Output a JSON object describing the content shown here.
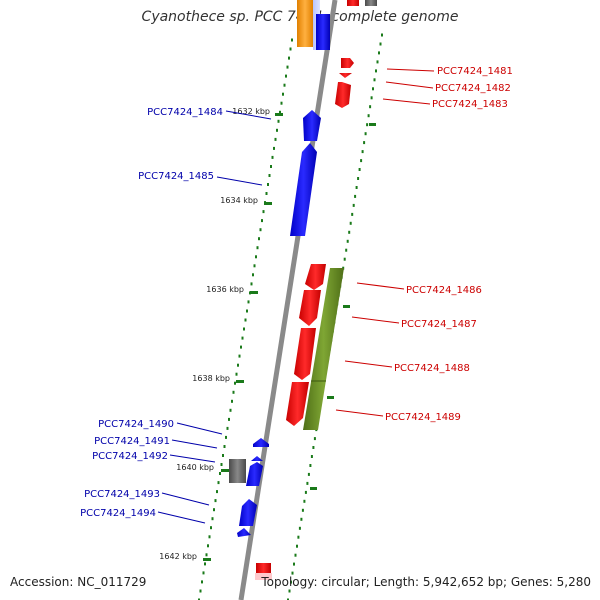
{
  "title": "Cyanothece sp. PCC 7424, complete genome",
  "footer": {
    "accession": "Accession: NC_011729",
    "summary": "Topology: circular; Length: 5,942,652 bp; Genes: 5,280"
  },
  "colors": {
    "backbone": "#8a8a8a",
    "minus_strand_gene": "#0000ee",
    "plus_strand_gene": "#ee0000",
    "orange_gene": "#f39a1c",
    "green_feature": "#6b8f26",
    "gray_feature": "#666666",
    "tick_mark": "#1a7a1a",
    "left_label": "#0000aa",
    "right_label": "#cc0000"
  },
  "kbp_labels": [
    "1632 kbp",
    "1634 kbp",
    "1636 kbp",
    "1638 kbp",
    "1640 kbp",
    "1642 kbp"
  ],
  "left_genes": [
    "PCC7424_1484",
    "PCC7424_1485",
    "PCC7424_1490",
    "PCC7424_1491",
    "PCC7424_1492",
    "PCC7424_1493",
    "PCC7424_1494"
  ],
  "right_genes": [
    "PCC7424_1481",
    "PCC7424_1482",
    "PCC7424_1483",
    "PCC7424_1486",
    "PCC7424_1487",
    "PCC7424_1488",
    "PCC7424_1489"
  ]
}
